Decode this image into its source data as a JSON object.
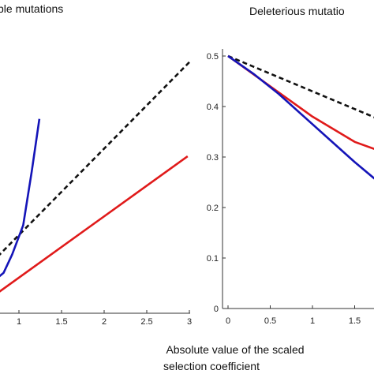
{
  "xlabel_lines": [
    "Absolute value of the scaled",
    "selection coefficient"
  ],
  "colors": {
    "dashed": "#111111",
    "red": "#e01a1a",
    "blue": "#1414b8",
    "axis": "#333333"
  },
  "chart_data": [
    {
      "type": "line",
      "title": "ble mutations",
      "xlim": [
        0,
        3
      ],
      "x_ticks": [
        0.5,
        1,
        1.5,
        2,
        2.5,
        3
      ],
      "x_tick_labels": [
        "",
        "1",
        "1.5",
        "2",
        "2.5",
        "3"
      ],
      "grid": false,
      "series": [
        {
          "style": "dashed",
          "x": [
            0.75,
            3.0
          ],
          "y": [
            0.56,
            2.48
          ]
        },
        {
          "style": "red",
          "x": [
            0.75,
            2.98
          ],
          "y": [
            0.2,
            1.55
          ]
        },
        {
          "style": "blue",
          "x": [
            0.75,
            0.82,
            0.92,
            1.05,
            1.15,
            1.24
          ],
          "y": [
            0.35,
            0.4,
            0.58,
            0.87,
            1.4,
            1.92
          ]
        }
      ]
    },
    {
      "type": "line",
      "title": "Deleterious mutatio",
      "xlim": [
        0,
        2
      ],
      "ylim": [
        0,
        0.5
      ],
      "x_ticks": [
        0,
        0.5,
        1,
        1.5
      ],
      "x_tick_labels": [
        "0",
        "0.5",
        "1",
        "1.5"
      ],
      "y_ticks": [
        0,
        0.1,
        0.2,
        0.3,
        0.4,
        0.5
      ],
      "y_tick_labels": [
        "0",
        "0.1",
        "0.2",
        "0.3",
        "0.4",
        "0.5"
      ],
      "grid": false,
      "series": [
        {
          "style": "dashed",
          "x": [
            0.0,
            0.5,
            1.0,
            1.5,
            2.0
          ],
          "y": [
            0.5,
            0.465,
            0.43,
            0.395,
            0.36
          ]
        },
        {
          "style": "red",
          "x": [
            0.0,
            0.5,
            1.0,
            1.5,
            2.0
          ],
          "y": [
            0.5,
            0.44,
            0.38,
            0.33,
            0.3
          ]
        },
        {
          "style": "blue",
          "x": [
            0.0,
            0.3,
            0.6,
            0.9,
            1.2,
            1.5,
            1.75,
            2.0
          ],
          "y": [
            0.5,
            0.465,
            0.425,
            0.38,
            0.335,
            0.29,
            0.255,
            0.235
          ]
        }
      ]
    }
  ]
}
